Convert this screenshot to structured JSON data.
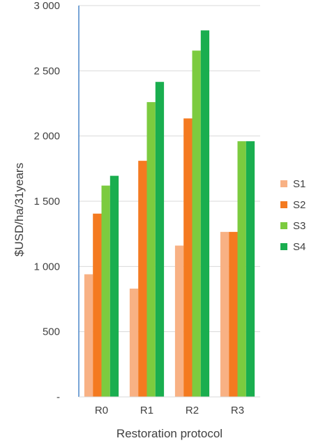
{
  "chart_data": {
    "type": "bar",
    "categories": [
      "R0",
      "R1",
      "R2",
      "R3"
    ],
    "series": [
      {
        "name": "S1",
        "values": [
          940,
          830,
          1160,
          1265
        ],
        "color": "#F8B184"
      },
      {
        "name": "S2",
        "values": [
          1405,
          1810,
          2135,
          1265
        ],
        "color": "#F47A20"
      },
      {
        "name": "S3",
        "values": [
          1620,
          2260,
          2655,
          1960
        ],
        "color": "#7CCB3F"
      },
      {
        "name": "S4",
        "values": [
          1695,
          2415,
          2810,
          1960
        ],
        "color": "#1AAE4F"
      }
    ],
    "xlabel": "Restoration protocol",
    "ylabel": "$USD/ha/31years",
    "ylim": [
      0,
      3000
    ],
    "yticks": [
      0,
      500,
      1000,
      1500,
      2000,
      2500,
      3000
    ],
    "ytick_labels": [
      "-",
      "500",
      "1 000",
      "1 500",
      "2 000",
      "2 500",
      "3 000"
    ],
    "grid": "horizontal",
    "legend_position": "right",
    "axis_color": "#4A86C8",
    "grid_color": "#D9D9D9"
  }
}
